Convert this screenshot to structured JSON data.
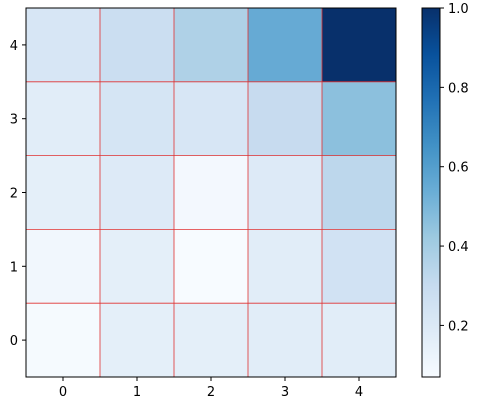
{
  "chart_data": {
    "type": "heatmap",
    "title": "",
    "xlabel": "",
    "ylabel": "",
    "x_categories": [
      "0",
      "1",
      "2",
      "3",
      "4"
    ],
    "y_categories": [
      "0",
      "1",
      "2",
      "3",
      "4"
    ],
    "values": [
      [
        0.08,
        0.16,
        0.16,
        0.17,
        0.17
      ],
      [
        0.1,
        0.16,
        0.07,
        0.17,
        0.25
      ],
      [
        0.16,
        0.19,
        0.09,
        0.19,
        0.33
      ],
      [
        0.17,
        0.23,
        0.22,
        0.3,
        0.46
      ],
      [
        0.22,
        0.28,
        0.37,
        0.55,
        1.0
      ]
    ],
    "value_range": [
      0.07,
      1.0
    ],
    "colormap": "Blues",
    "cell_edge_color": "#e03030",
    "colorbar": {
      "ticks": [
        "0.2",
        "0.4",
        "0.6",
        "0.8",
        "1.0"
      ],
      "tick_values": [
        0.2,
        0.4,
        0.6,
        0.8,
        1.0
      ]
    },
    "grid": false
  }
}
